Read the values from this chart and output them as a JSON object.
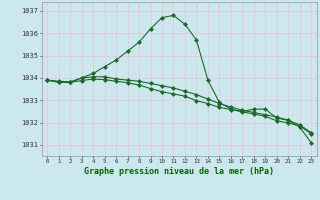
{
  "background_color": "#cce8ee",
  "grid_color_v": "#e8c8d8",
  "grid_color_h": "#e8c8d8",
  "line_color": "#1a6b2a",
  "marker_color": "#1a6b2a",
  "xlabel": "Graphe pression niveau de la mer (hPa)",
  "ylim": [
    1030.5,
    1037.4
  ],
  "xlim": [
    -0.5,
    23.5
  ],
  "yticks": [
    1031,
    1032,
    1033,
    1034,
    1035,
    1036,
    1037
  ],
  "xticks": [
    0,
    1,
    2,
    3,
    4,
    5,
    6,
    7,
    8,
    9,
    10,
    11,
    12,
    13,
    14,
    15,
    16,
    17,
    18,
    19,
    20,
    21,
    22,
    23
  ],
  "series": [
    {
      "x": [
        0,
        1,
        2,
        3,
        4,
        5,
        6,
        7,
        8,
        9,
        10,
        11,
        12,
        13,
        14,
        15,
        16,
        17,
        18,
        19,
        20,
        21,
        22,
        23
      ],
      "y": [
        1033.9,
        1033.8,
        1033.8,
        1034.0,
        1034.2,
        1034.5,
        1034.8,
        1035.2,
        1035.6,
        1036.2,
        1036.7,
        1036.8,
        1036.4,
        1035.7,
        1033.9,
        1032.9,
        1032.6,
        1032.5,
        1032.6,
        1032.6,
        1032.2,
        1032.1,
        1031.8,
        1031.1
      ]
    },
    {
      "x": [
        0,
        1,
        2,
        3,
        4,
        5,
        6,
        7,
        8,
        9,
        10,
        11,
        12,
        13,
        14,
        15,
        16,
        17,
        18,
        19,
        20,
        21,
        22,
        23
      ],
      "y": [
        1033.9,
        1033.85,
        1033.82,
        1034.0,
        1034.05,
        1034.05,
        1033.95,
        1033.9,
        1033.85,
        1033.75,
        1033.65,
        1033.55,
        1033.4,
        1033.25,
        1033.05,
        1032.85,
        1032.7,
        1032.55,
        1032.45,
        1032.35,
        1032.25,
        1032.1,
        1031.9,
        1031.55
      ]
    },
    {
      "x": [
        0,
        1,
        2,
        3,
        4,
        5,
        6,
        7,
        8,
        9,
        10,
        11,
        12,
        13,
        14,
        15,
        16,
        17,
        18,
        19,
        20,
        21,
        22,
        23
      ],
      "y": [
        1033.9,
        1033.82,
        1033.8,
        1033.88,
        1033.95,
        1033.92,
        1033.85,
        1033.78,
        1033.68,
        1033.52,
        1033.38,
        1033.28,
        1033.18,
        1032.98,
        1032.85,
        1032.68,
        1032.58,
        1032.48,
        1032.38,
        1032.28,
        1032.08,
        1031.98,
        1031.85,
        1031.5
      ]
    }
  ]
}
